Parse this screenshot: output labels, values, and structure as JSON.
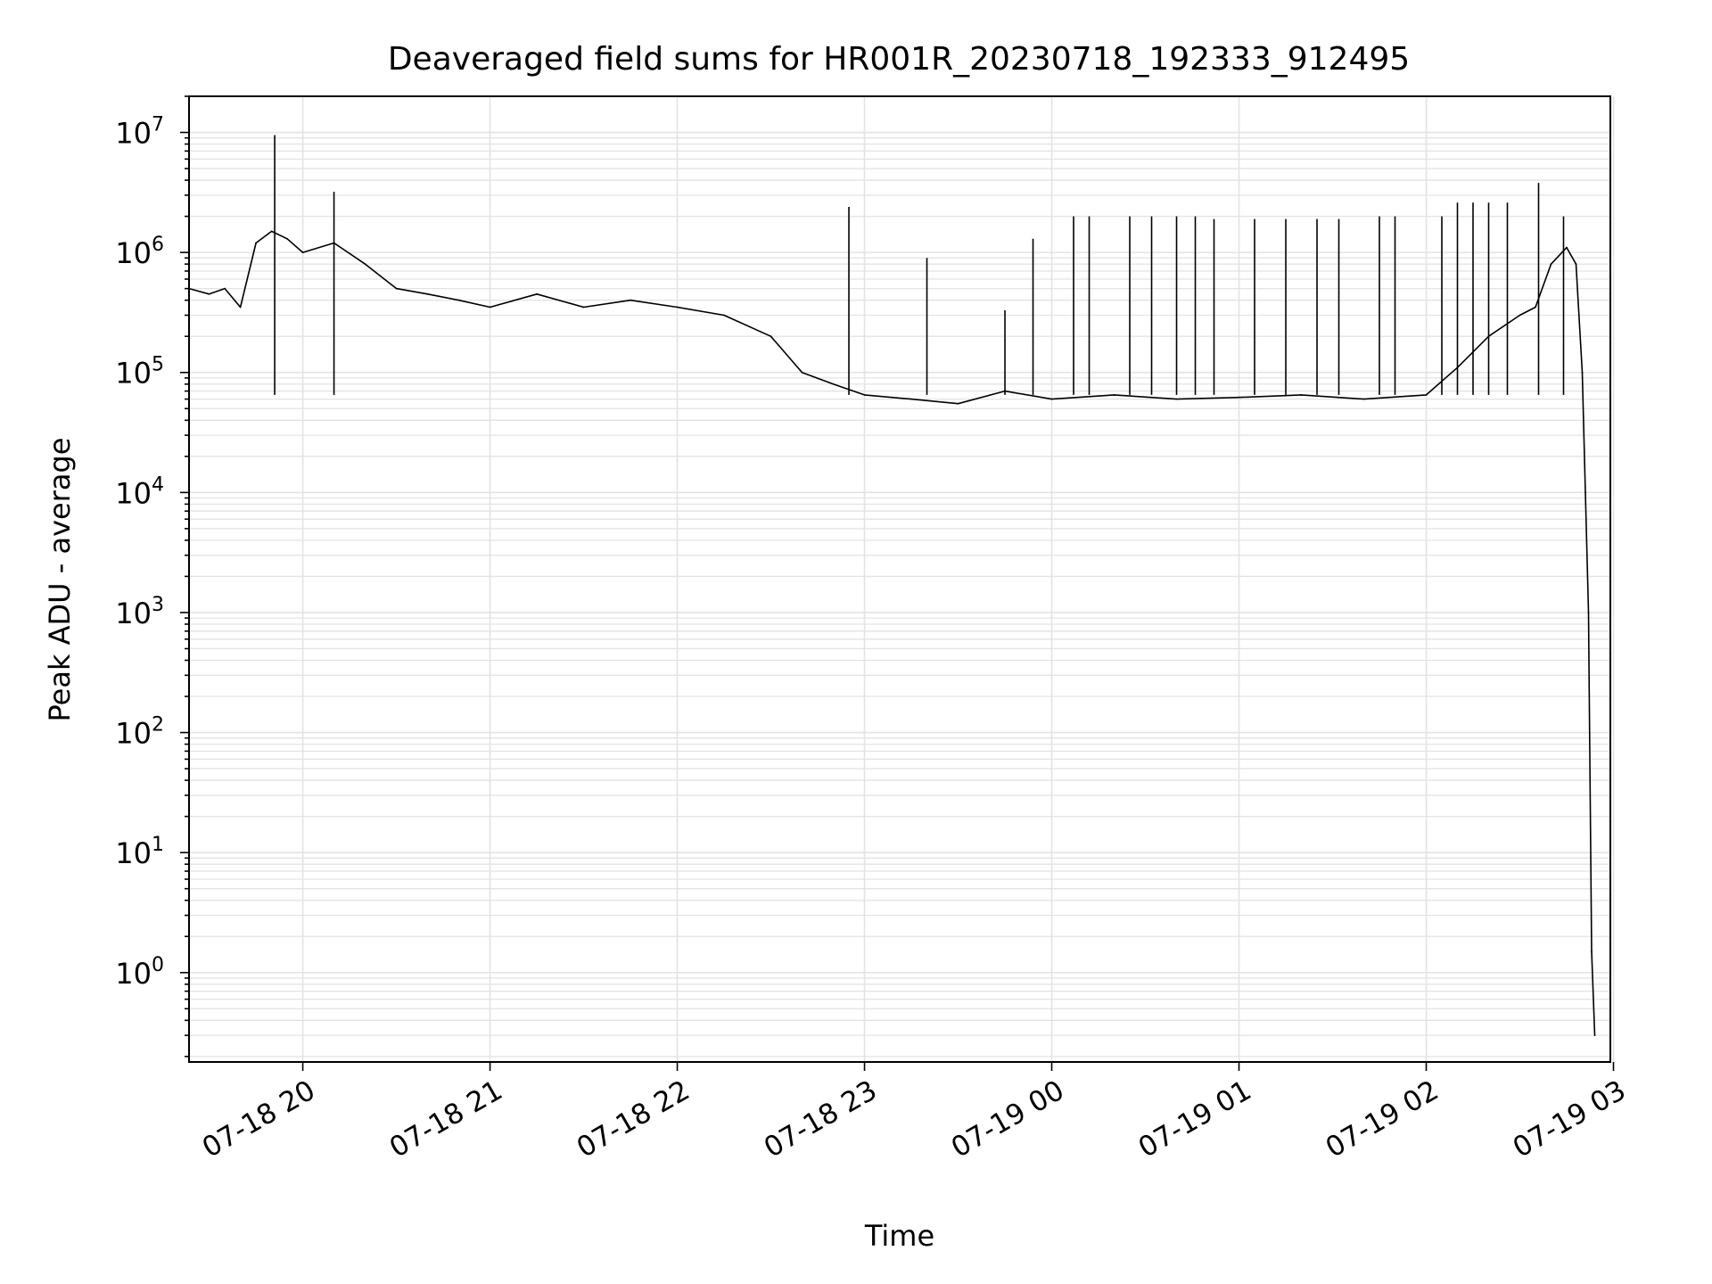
{
  "chart_data": {
    "type": "line",
    "title": "Deaveraged field sums for HR001R_20230718_192333_912495",
    "xlabel": "Time",
    "ylabel": "Peak ADU - average",
    "yscale": "log",
    "ylim": [
      0.18,
      20000000
    ],
    "xlim": [
      "2023-07-18 19:23:33",
      "2023-07-19 02:59:00"
    ],
    "grid": true,
    "legend": "none",
    "line_color": "#000000",
    "x_ticks": [
      {
        "time": "2023-07-18 20:00",
        "label": "07-18 20"
      },
      {
        "time": "2023-07-18 21:00",
        "label": "07-18 21"
      },
      {
        "time": "2023-07-18 22:00",
        "label": "07-18 22"
      },
      {
        "time": "2023-07-18 23:00",
        "label": "07-18 23"
      },
      {
        "time": "2023-07-19 00:00",
        "label": "07-19 00"
      },
      {
        "time": "2023-07-19 01:00",
        "label": "07-19 01"
      },
      {
        "time": "2023-07-19 02:00",
        "label": "07-19 02"
      },
      {
        "time": "2023-07-19 03:00",
        "label": "07-19 03"
      }
    ],
    "y_ticks": [
      {
        "value": 1,
        "base": "10",
        "exp": "0"
      },
      {
        "value": 10,
        "base": "10",
        "exp": "1"
      },
      {
        "value": 100,
        "base": "10",
        "exp": "2"
      },
      {
        "value": 1000,
        "base": "10",
        "exp": "3"
      },
      {
        "value": 10000,
        "base": "10",
        "exp": "4"
      },
      {
        "value": 100000,
        "base": "10",
        "exp": "5"
      },
      {
        "value": 1000000,
        "base": "10",
        "exp": "6"
      },
      {
        "value": 10000000,
        "base": "10",
        "exp": "7"
      }
    ],
    "series": [
      {
        "x": [
          "2023-07-18 19:23:33",
          "2023-07-18 19:30",
          "2023-07-18 19:35",
          "2023-07-18 19:40",
          "2023-07-18 19:45",
          "2023-07-18 19:50",
          "2023-07-18 19:55",
          "2023-07-18 20:00",
          "2023-07-18 20:10",
          "2023-07-18 20:20",
          "2023-07-18 20:30",
          "2023-07-18 20:40",
          "2023-07-18 20:50",
          "2023-07-18 21:00",
          "2023-07-18 21:15",
          "2023-07-18 21:30",
          "2023-07-18 21:45",
          "2023-07-18 22:00",
          "2023-07-18 22:15",
          "2023-07-18 22:30",
          "2023-07-18 22:40",
          "2023-07-18 22:50",
          "2023-07-18 23:00",
          "2023-07-18 23:15",
          "2023-07-18 23:30",
          "2023-07-18 23:45",
          "2023-07-19 00:00",
          "2023-07-19 00:20",
          "2023-07-19 00:40",
          "2023-07-19 01:00",
          "2023-07-19 01:20",
          "2023-07-19 01:40",
          "2023-07-19 02:00",
          "2023-07-19 02:10",
          "2023-07-19 02:20",
          "2023-07-19 02:30",
          "2023-07-19 02:35",
          "2023-07-19 02:40",
          "2023-07-19 02:45",
          "2023-07-19 02:48",
          "2023-07-19 02:50",
          "2023-07-19 02:51",
          "2023-07-19 02:52",
          "2023-07-19 02:53",
          "2023-07-19 02:54"
        ],
        "y": [
          500000,
          450000,
          500000,
          350000,
          1200000,
          1500000,
          1300000,
          1000000,
          1200000,
          800000,
          500000,
          450000,
          400000,
          350000,
          450000,
          350000,
          400000,
          350000,
          300000,
          200000,
          100000,
          80000,
          65000,
          60000,
          55000,
          70000,
          60000,
          65000,
          60000,
          62000,
          65000,
          60000,
          65000,
          110000,
          200000,
          300000,
          350000,
          800000,
          1100000,
          800000,
          100000,
          10000,
          1000,
          1.5,
          0.3
        ]
      }
    ],
    "spikes": [
      {
        "x": "2023-07-18 19:51",
        "y": 9500000
      },
      {
        "x": "2023-07-18 20:10",
        "y": 3200000
      },
      {
        "x": "2023-07-18 22:55",
        "y": 2400000
      },
      {
        "x": "2023-07-18 23:20",
        "y": 900000
      },
      {
        "x": "2023-07-18 23:45",
        "y": 330000
      },
      {
        "x": "2023-07-18 23:54",
        "y": 1300000
      },
      {
        "x": "2023-07-19 00:07",
        "y": 2000000
      },
      {
        "x": "2023-07-19 00:12",
        "y": 2000000
      },
      {
        "x": "2023-07-19 00:25",
        "y": 2000000
      },
      {
        "x": "2023-07-19 00:32",
        "y": 2000000
      },
      {
        "x": "2023-07-19 00:40",
        "y": 2000000
      },
      {
        "x": "2023-07-19 00:46",
        "y": 2000000
      },
      {
        "x": "2023-07-19 00:52",
        "y": 1900000
      },
      {
        "x": "2023-07-19 01:05",
        "y": 1900000
      },
      {
        "x": "2023-07-19 01:15",
        "y": 1900000
      },
      {
        "x": "2023-07-19 01:25",
        "y": 1900000
      },
      {
        "x": "2023-07-19 01:32",
        "y": 1900000
      },
      {
        "x": "2023-07-19 01:45",
        "y": 2000000
      },
      {
        "x": "2023-07-19 01:50",
        "y": 2000000
      },
      {
        "x": "2023-07-19 02:05",
        "y": 2000000
      },
      {
        "x": "2023-07-19 02:10",
        "y": 2600000
      },
      {
        "x": "2023-07-19 02:15",
        "y": 2600000
      },
      {
        "x": "2023-07-19 02:20",
        "y": 2600000
      },
      {
        "x": "2023-07-19 02:26",
        "y": 2600000
      },
      {
        "x": "2023-07-19 02:36",
        "y": 3800000
      },
      {
        "x": "2023-07-19 02:44",
        "y": 2000000
      }
    ]
  }
}
